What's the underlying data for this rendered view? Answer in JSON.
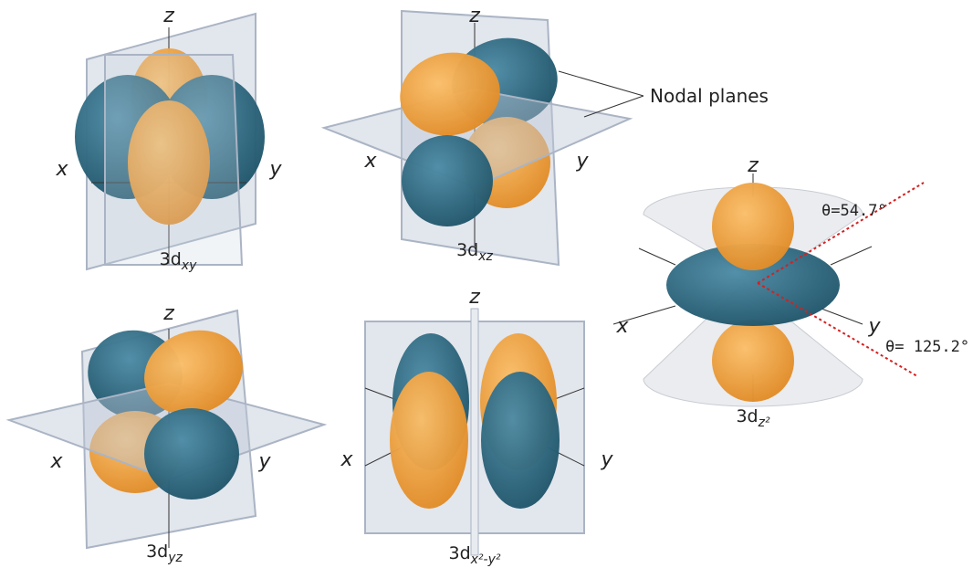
{
  "orbitals": [
    {
      "name": {
        "main": "3d",
        "sub": "xy"
      },
      "axes": {
        "x": "x",
        "y": "y",
        "z": "z"
      }
    },
    {
      "name": {
        "main": "3d",
        "sub": "xz"
      },
      "axes": {
        "x": "x",
        "y": "y",
        "z": "z"
      }
    },
    {
      "name": {
        "main": "3d",
        "sub": "yz"
      },
      "axes": {
        "x": "x",
        "y": "y",
        "z": "z"
      }
    },
    {
      "name": {
        "main": "3d",
        "sub": "x²-y²"
      },
      "axes": {
        "x": "x",
        "y": "y",
        "z": "z"
      }
    },
    {
      "name": {
        "main": "3d",
        "sub": "z²"
      },
      "axes": {
        "x": "x",
        "y": "y",
        "z": "z"
      }
    }
  ],
  "annotation": "Nodal planes",
  "angles": [
    "θ=54.7°",
    "θ= 125.2°"
  ]
}
